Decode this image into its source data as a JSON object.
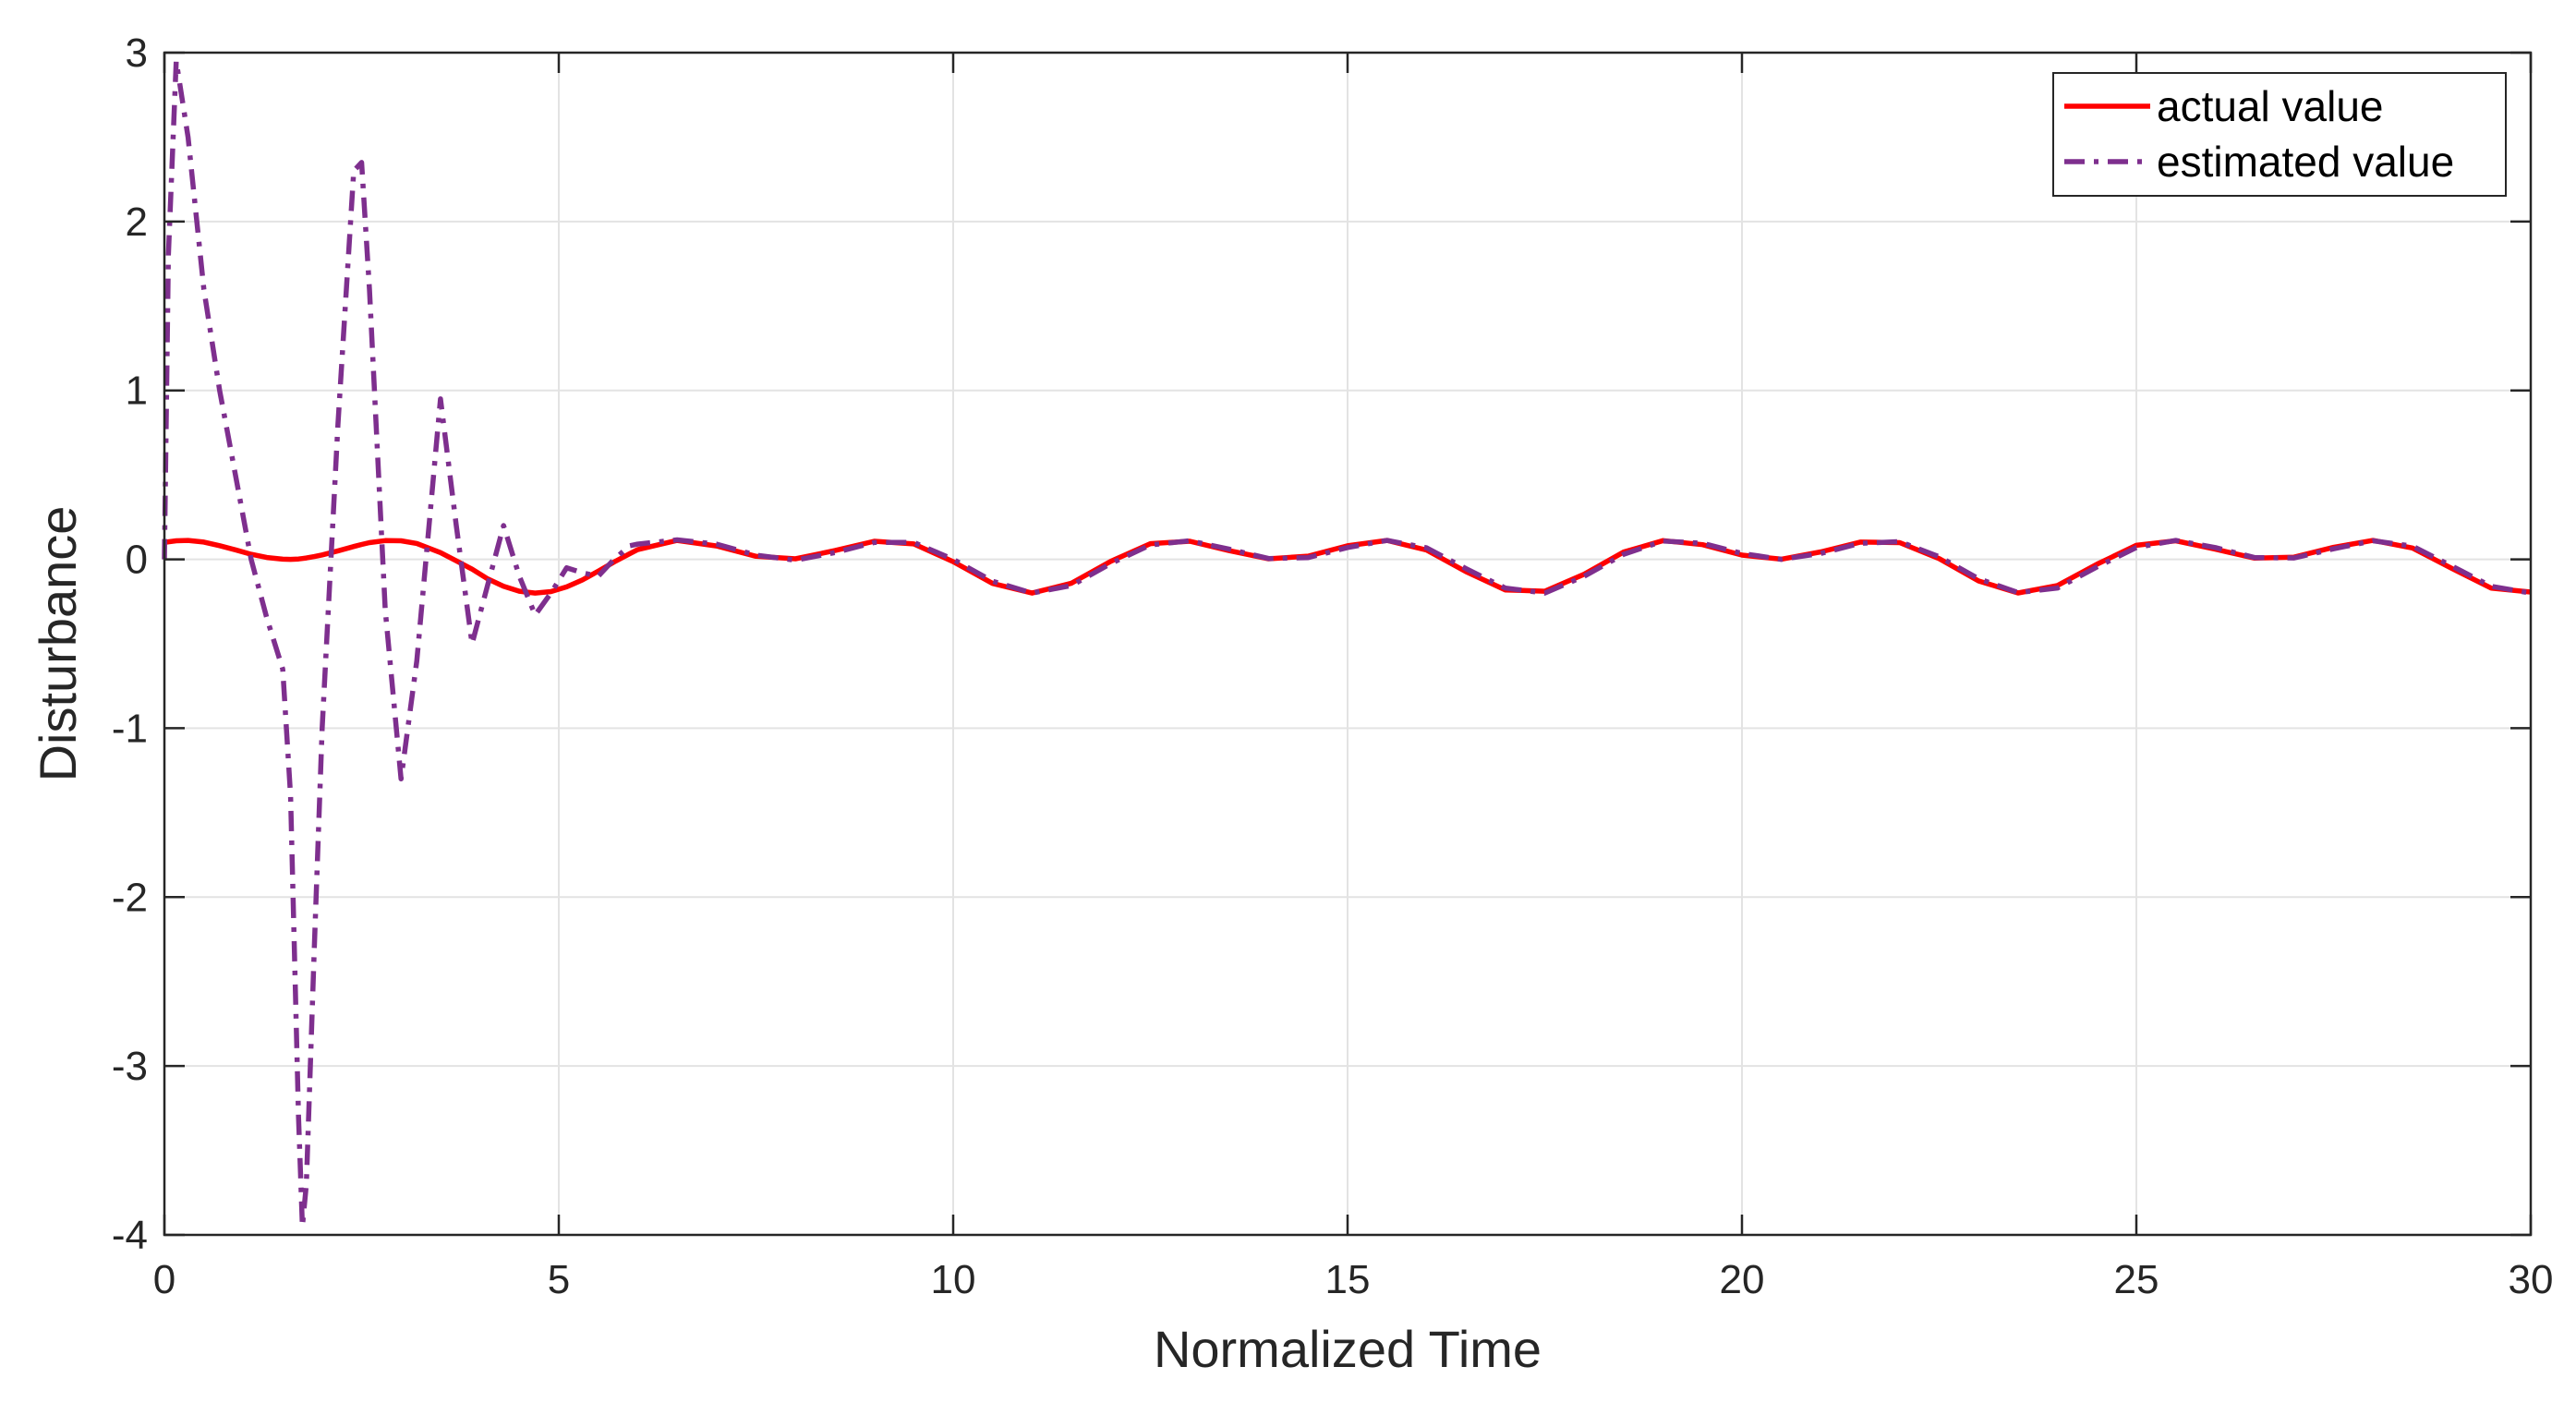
{
  "chart_data": {
    "type": "line",
    "x_label": "Normalized Time",
    "y_label": "Disturbance",
    "xlim": [
      0,
      30
    ],
    "ylim": [
      -4,
      3
    ],
    "xticks": [
      0,
      5,
      10,
      15,
      20,
      25,
      30
    ],
    "yticks": [
      -4,
      -3,
      -2,
      -1,
      0,
      1,
      2,
      3
    ],
    "grid": true,
    "legend": "upper right",
    "x": [
      0,
      0.05,
      0.15,
      0.3,
      0.5,
      0.7,
      0.9,
      1.1,
      1.3,
      1.5,
      1.6,
      1.7,
      1.75,
      1.8,
      1.9,
      2.0,
      2.2,
      2.4,
      2.5,
      2.6,
      2.8,
      3.0,
      3.2,
      3.5,
      3.7,
      3.9,
      4.1,
      4.3,
      4.5,
      4.7,
      4.9,
      5.1,
      5.3,
      5.5,
      5.7,
      5.9,
      6.0,
      6.5,
      7.0,
      7.5,
      8.0,
      8.5,
      9.0,
      9.5,
      10.0,
      10.5,
      11.0,
      11.5,
      12.0,
      12.5,
      13.0,
      13.5,
      14.0,
      14.5,
      15.0,
      15.5,
      16.0,
      16.5,
      17.0,
      17.5,
      18.0,
      18.5,
      19.0,
      19.5,
      20.0,
      20.5,
      21.0,
      21.5,
      22.0,
      22.5,
      23.0,
      23.5,
      24.0,
      24.5,
      25.0,
      25.5,
      26.0,
      26.5,
      27.0,
      27.5,
      28.0,
      28.5,
      29.0,
      29.5,
      30.0
    ],
    "series": [
      {
        "name": "actual value",
        "color": "#ff0000",
        "dash": "solid",
        "values": [
          0.1,
          0.104,
          0.11,
          0.112,
          0.102,
          0.081,
          0.056,
          0.03,
          0.011,
          0.001,
          0.0,
          0.002,
          0.005,
          0.008,
          0.016,
          0.026,
          0.05,
          0.076,
          0.088,
          0.099,
          0.111,
          0.11,
          0.094,
          0.04,
          -0.009,
          -0.058,
          -0.116,
          -0.16,
          -0.189,
          -0.2,
          -0.191,
          -0.163,
          -0.122,
          -0.07,
          -0.016,
          0.034,
          0.057,
          0.112,
          0.079,
          0.018,
          0.003,
          0.052,
          0.107,
          0.091,
          -0.014,
          -0.143,
          -0.2,
          -0.141,
          -0.011,
          0.093,
          0.107,
          0.051,
          0.003,
          0.019,
          0.08,
          0.112,
          0.055,
          -0.073,
          -0.181,
          -0.189,
          -0.088,
          0.043,
          0.111,
          0.087,
          0.025,
          0.001,
          0.044,
          0.102,
          0.099,
          0.004,
          -0.128,
          -0.199,
          -0.155,
          -0.029,
          0.083,
          0.11,
          0.06,
          0.007,
          0.013,
          0.071,
          0.112,
          0.067,
          -0.054,
          -0.171,
          -0.194
        ]
      },
      {
        "name": "estimated value",
        "color": "#7e2f8e",
        "dash": "dashdot",
        "values": [
          0,
          1.8,
          2.95,
          2.5,
          1.6,
          1.0,
          0.5,
          0.0,
          -0.35,
          -0.65,
          -1.4,
          -3.3,
          -3.95,
          -3.7,
          -2.3,
          -1.0,
          0.8,
          2.3,
          2.35,
          1.6,
          -0.3,
          -1.3,
          -0.6,
          0.95,
          0.2,
          -0.5,
          -0.15,
          0.2,
          -0.1,
          -0.33,
          -0.2,
          -0.05,
          -0.08,
          -0.1,
          0.0,
          0.08,
          0.09,
          0.115,
          0.09,
          0.025,
          -0.005,
          0.04,
          0.1,
          0.1,
          0.0,
          -0.13,
          -0.2,
          -0.155,
          -0.025,
          0.085,
          0.11,
          0.06,
          0.005,
          0.01,
          0.07,
          0.112,
          0.068,
          -0.055,
          -0.17,
          -0.2,
          -0.1,
          0.03,
          0.108,
          0.095,
          0.035,
          0.0,
          0.035,
          0.095,
          0.105,
          0.015,
          -0.115,
          -0.197,
          -0.17,
          -0.045,
          0.07,
          0.112,
          0.07,
          0.01,
          0.008,
          0.062,
          0.11,
          0.078,
          -0.04,
          -0.16,
          -0.2
        ]
      }
    ]
  }
}
